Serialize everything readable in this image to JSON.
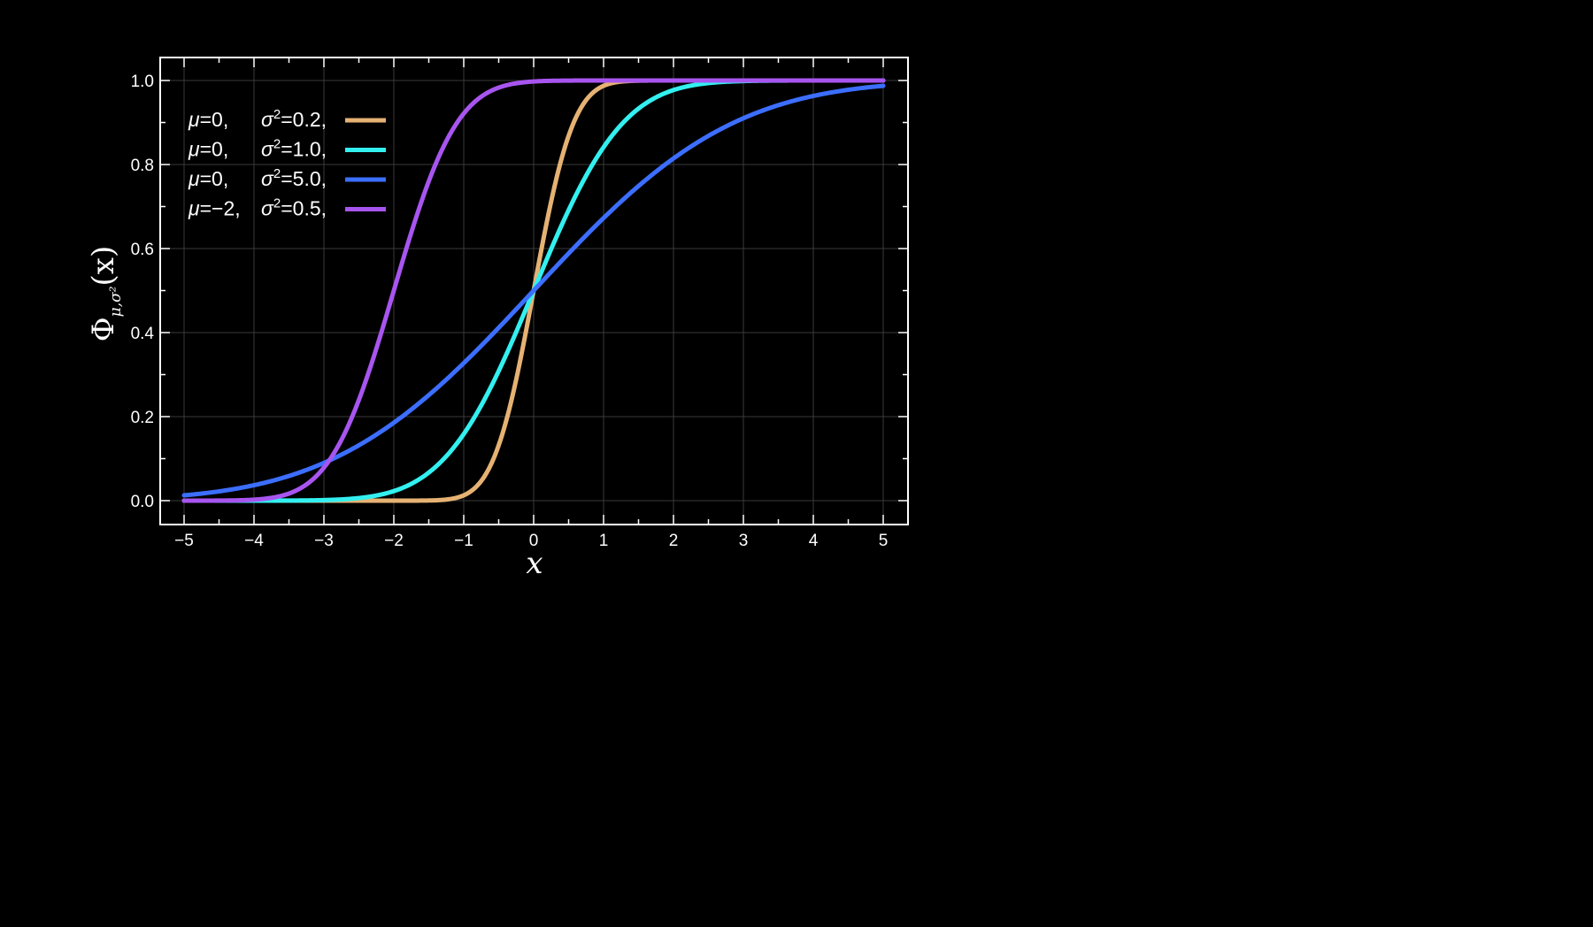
{
  "chart_data": {
    "type": "line",
    "title": "",
    "xlabel": "x",
    "ylabel": {
      "symbol": "Φ",
      "subscript": "μ,σ²",
      "argument": "(x)"
    },
    "xlim": [
      -5,
      5
    ],
    "ylim": [
      0,
      1
    ],
    "x_ticks": [
      -5,
      -4,
      -3,
      -2,
      -1,
      0,
      1,
      2,
      3,
      4,
      5
    ],
    "x_tick_labels": [
      "−5",
      "−4",
      "−3",
      "−2",
      "−1",
      "0",
      "1",
      "2",
      "3",
      "4",
      "5"
    ],
    "y_ticks": [
      0.0,
      0.2,
      0.4,
      0.6,
      0.8,
      1.0
    ],
    "y_tick_labels": [
      "0.0",
      "0.2",
      "0.4",
      "0.6",
      "0.8",
      "1.0"
    ],
    "grid": true,
    "legend_position": "top-left",
    "series": [
      {
        "mu": 0,
        "sigma2": 0.2,
        "legend": {
          "mu_label": "μ",
          "mu_text": "=0,",
          "sigma_label": "σ",
          "sigma_sup": "2",
          "sigma_text": "=0.2,"
        },
        "color": "#e6b273"
      },
      {
        "mu": 0,
        "sigma2": 1.0,
        "legend": {
          "mu_label": "μ",
          "mu_text": "=0,",
          "sigma_label": "σ",
          "sigma_sup": "2",
          "sigma_text": "=1.0,"
        },
        "color": "#33f0f0"
      },
      {
        "mu": 0,
        "sigma2": 5.0,
        "legend": {
          "mu_label": "μ",
          "mu_text": "=0,",
          "sigma_label": "σ",
          "sigma_sup": "2",
          "sigma_text": "=5.0,"
        },
        "color": "#3c6eff"
      },
      {
        "mu": -2,
        "sigma2": 0.5,
        "legend": {
          "mu_label": "μ",
          "mu_text": "=−2,",
          "sigma_label": "σ",
          "sigma_sup": "2",
          "sigma_text": "=0.5,"
        },
        "color": "#a855f0"
      }
    ]
  }
}
